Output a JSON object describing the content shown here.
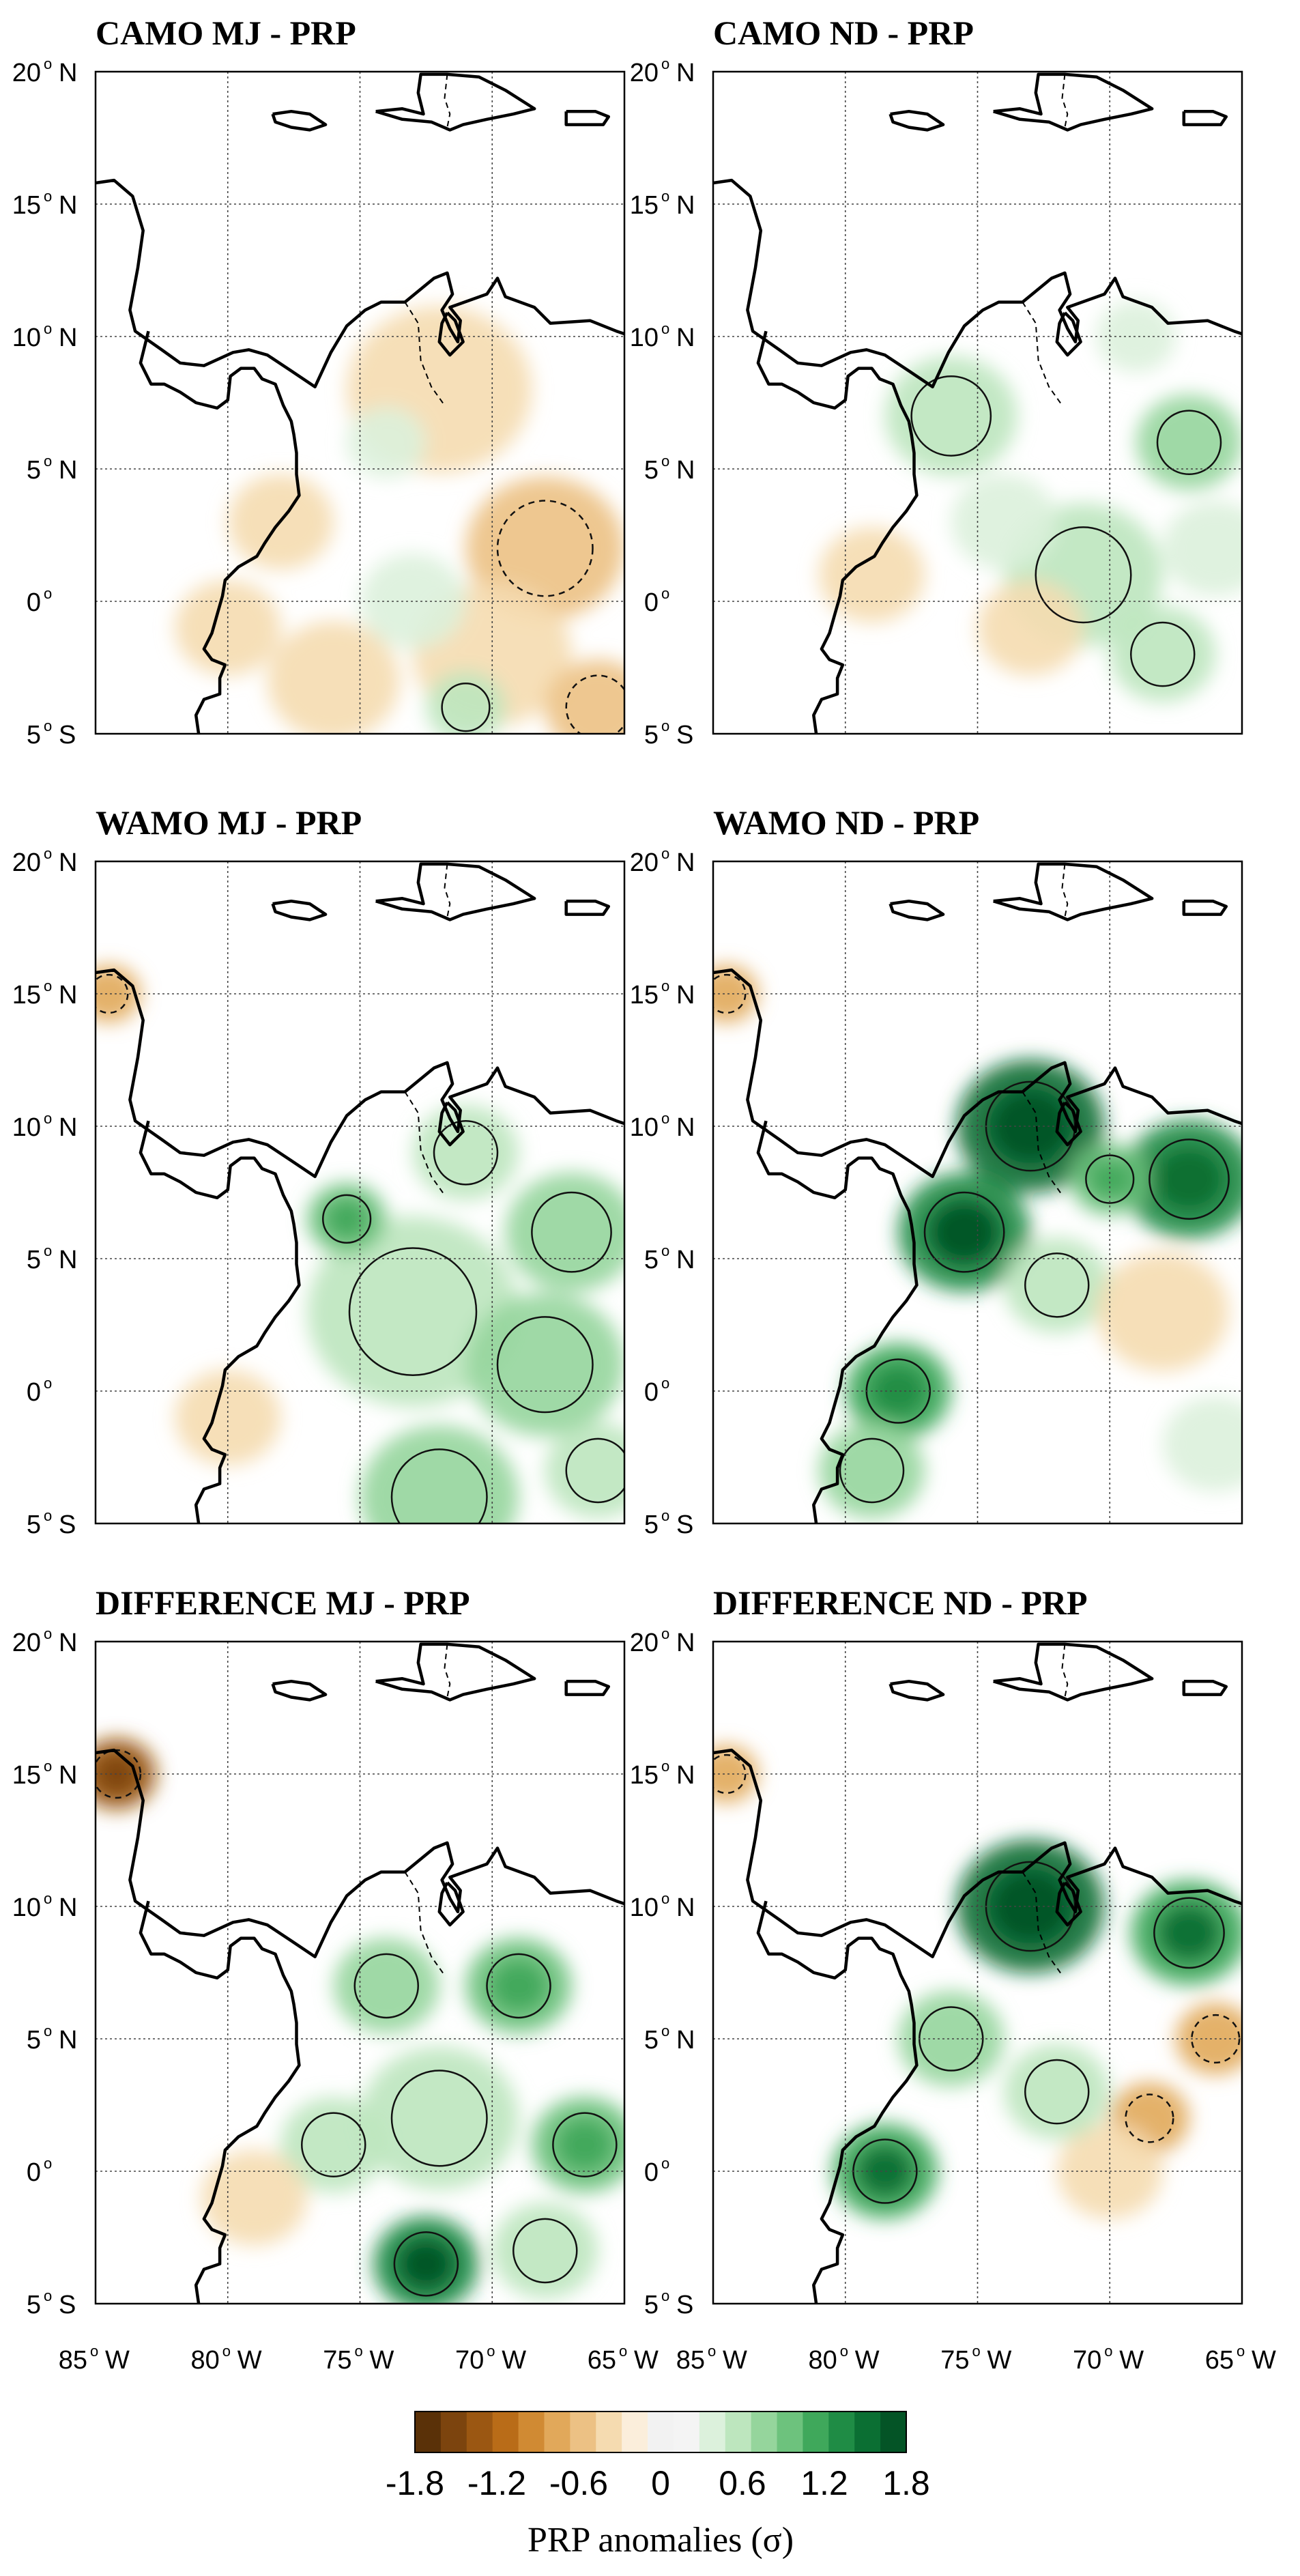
{
  "figure": {
    "panels": [
      {
        "id": "camo-mj",
        "title": "CAMO MJ - PRP"
      },
      {
        "id": "camo-nd",
        "title": "CAMO ND - PRP"
      },
      {
        "id": "wamo-mj",
        "title": "WAMO MJ - PRP"
      },
      {
        "id": "wamo-nd",
        "title": "WAMO ND - PRP"
      },
      {
        "id": "diff-mj",
        "title": "DIFFERENCE MJ - PRP"
      },
      {
        "id": "diff-nd",
        "title": "DIFFERENCE ND - PRP"
      }
    ],
    "lat_ticks": [
      {
        "value": 20,
        "text": "20",
        "hemi": "N"
      },
      {
        "value": 15,
        "text": "15",
        "hemi": "N"
      },
      {
        "value": 10,
        "text": "10",
        "hemi": "N"
      },
      {
        "value": 5,
        "text": "5",
        "hemi": "N"
      },
      {
        "value": 0,
        "text": "0",
        "hemi": ""
      },
      {
        "value": -5,
        "text": "5",
        "hemi": "S"
      }
    ],
    "lon_ticks": [
      {
        "value": -85,
        "text": "85",
        "hemi": "W"
      },
      {
        "value": -80,
        "text": "80",
        "hemi": "W"
      },
      {
        "value": -75,
        "text": "75",
        "hemi": "W"
      },
      {
        "value": -70,
        "text": "70",
        "hemi": "W"
      },
      {
        "value": -65,
        "text": "65",
        "hemi": "W"
      }
    ],
    "degree_symbol": "o",
    "extent": {
      "lon_min": -85,
      "lon_max": -65,
      "lat_min": -5,
      "lat_max": 20
    },
    "colorbar": {
      "title": "PRP anomalies (σ)",
      "tick_labels": [
        "-1.8",
        "-1.2",
        "-0.6",
        "0",
        "0.6",
        "1.2",
        "1.8"
      ],
      "range": [
        -1.8,
        1.8
      ],
      "colors": [
        "#5a3108",
        "#7c440e",
        "#9b5712",
        "#b96c18",
        "#d08a33",
        "#e1a85a",
        "#ecc184",
        "#f5dbb0",
        "#fbeedb",
        "#f2f2f2",
        "#f4f4f4",
        "#dcf1dc",
        "#bde6be",
        "#95d59c",
        "#6dc27d",
        "#3fa85b",
        "#1f8c45",
        "#0b6f33",
        "#045426"
      ]
    }
  }
}
